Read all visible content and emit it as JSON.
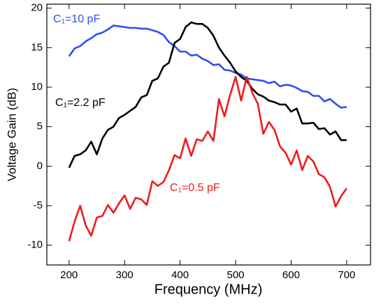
{
  "chart_data": {
    "type": "line",
    "x_label": "Frequency (MHz)",
    "y_label": "Voltage Gain (dB)",
    "x": [
      200,
      210,
      220,
      230,
      240,
      250,
      260,
      270,
      280,
      290,
      300,
      310,
      320,
      330,
      340,
      350,
      360,
      370,
      380,
      390,
      400,
      410,
      420,
      430,
      440,
      450,
      460,
      470,
      480,
      490,
      500,
      510,
      520,
      530,
      540,
      550,
      560,
      570,
      580,
      590,
      600,
      610,
      620,
      630,
      640,
      650,
      660,
      670,
      680,
      690,
      700
    ],
    "series": [
      {
        "name": "C₁=10 pF",
        "color": "#2f4ff0",
        "values": [
          13.9,
          14.9,
          15.2,
          15.8,
          16.2,
          16.7,
          16.9,
          17.3,
          17.8,
          17.7,
          17.6,
          17.5,
          17.5,
          17.4,
          17.4,
          17.2,
          17.0,
          16.6,
          15.7,
          15.2,
          14.5,
          14.5,
          14.0,
          14.1,
          13.6,
          13.3,
          12.8,
          12.9,
          12.2,
          12.1,
          11.8,
          11.6,
          11.1,
          11.0,
          10.9,
          10.8,
          10.5,
          10.7,
          10.1,
          10.3,
          10.2,
          9.9,
          9.5,
          9.4,
          8.9,
          8.9,
          8.2,
          8.5,
          7.9,
          7.4,
          7.5
        ]
      },
      {
        "name": "C₁=2.2 pF",
        "color": "#000000",
        "values": [
          -0.2,
          1.3,
          1.5,
          2.0,
          3.1,
          1.5,
          3.5,
          4.6,
          5.0,
          6.1,
          6.5,
          7.0,
          7.5,
          8.7,
          9.0,
          10.8,
          11.1,
          12.6,
          13.1,
          15.6,
          16.1,
          17.6,
          18.2,
          18.0,
          18.0,
          17.5,
          16.5,
          15.0,
          14.0,
          13.1,
          12.0,
          11.3,
          10.8,
          9.8,
          9.1,
          8.8,
          8.3,
          8.1,
          7.8,
          7.8,
          6.9,
          7.3,
          5.4,
          5.4,
          5.5,
          4.7,
          4.8,
          4.0,
          4.4,
          3.3,
          3.3
        ]
      },
      {
        "name": "C₁=0.5 pF",
        "color": "#ee1c1c",
        "values": [
          -9.5,
          -7.0,
          -5.0,
          -7.5,
          -8.8,
          -6.5,
          -6.3,
          -4.9,
          -5.9,
          -4.7,
          -3.7,
          -5.4,
          -4.0,
          -4.2,
          -4.9,
          -1.9,
          -2.5,
          -2.0,
          -0.5,
          1.4,
          1.0,
          3.5,
          1.3,
          3.4,
          3.2,
          4.4,
          3.2,
          8.5,
          6.3,
          9.0,
          11.3,
          8.3,
          11.3,
          9.3,
          7.9,
          4.1,
          5.6,
          4.6,
          2.5,
          1.7,
          0.2,
          2.0,
          -0.5,
          1.3,
          0.6,
          -1.0,
          -1.4,
          -2.6,
          -5.1,
          -3.8,
          -2.8
        ]
      }
    ],
    "xlim": [
      160,
      743
    ],
    "ylim": [
      -12.5,
      20.5
    ],
    "xticks": [
      200,
      300,
      400,
      500,
      600,
      700
    ],
    "yticks": [
      -10,
      -5,
      0,
      5,
      10,
      15,
      20
    ]
  }
}
